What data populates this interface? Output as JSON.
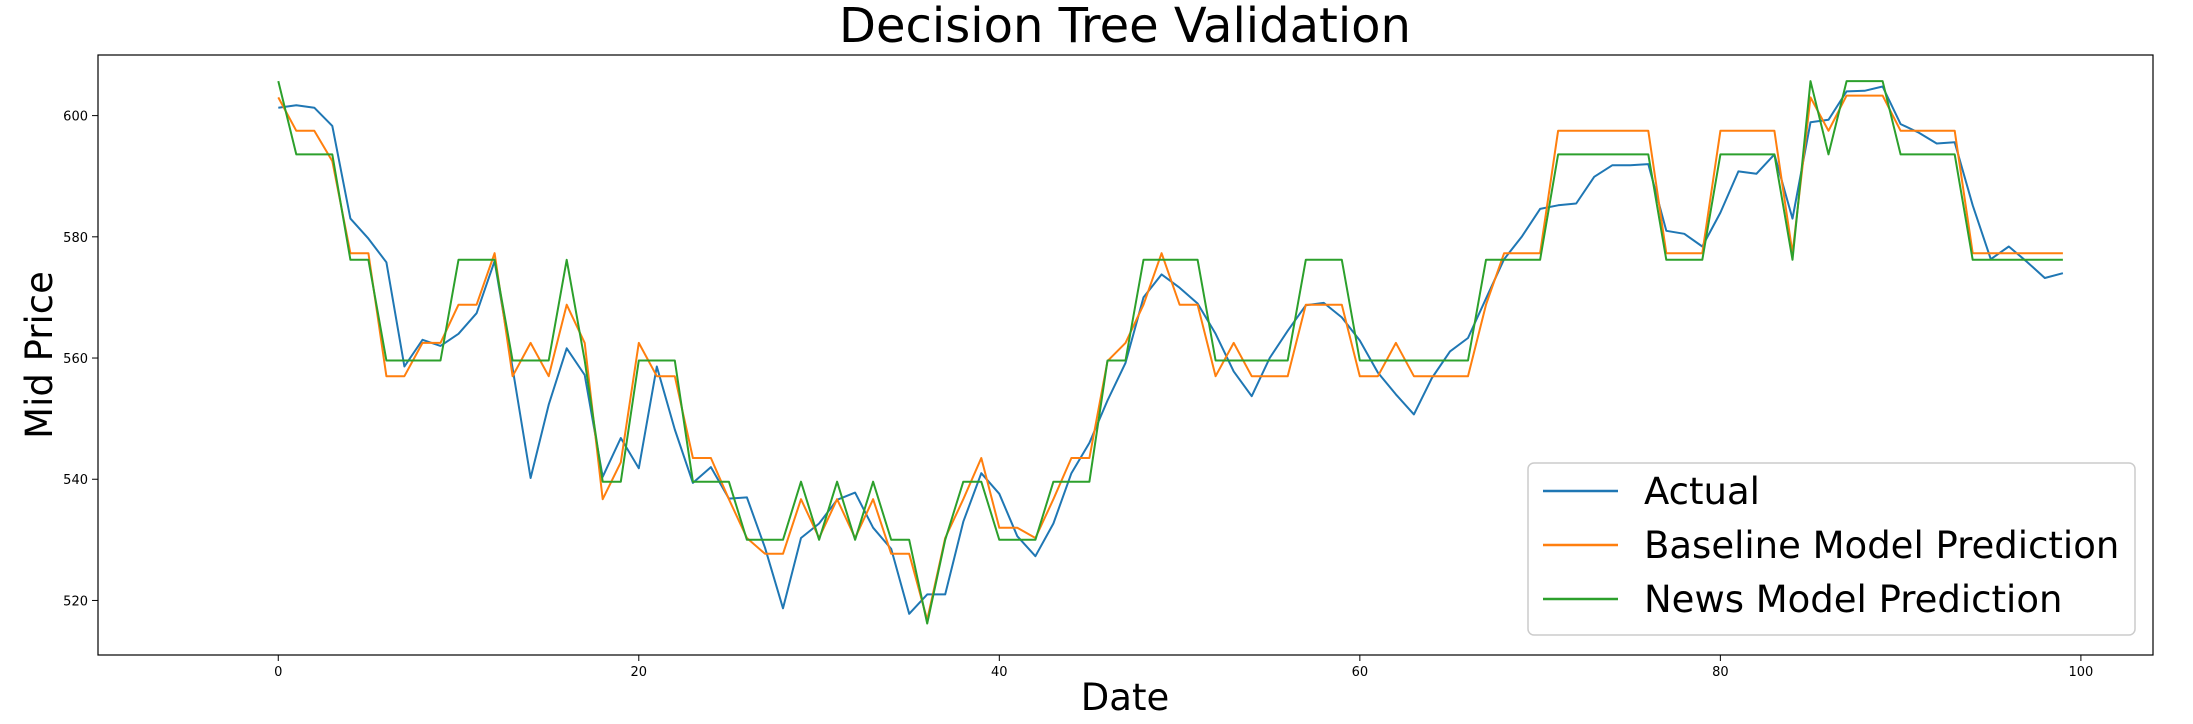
{
  "chart_data": {
    "type": "line",
    "title": "Decision Tree Validation",
    "xlabel": "Date",
    "ylabel": "Mid Price",
    "xlim": [
      -10,
      104
    ],
    "ylim": [
      511,
      610
    ],
    "xticks": [
      0,
      20,
      40,
      60,
      80,
      100
    ],
    "yticks": [
      520,
      540,
      560,
      580,
      600
    ],
    "grid": false,
    "legend_position": "lower right",
    "x": [
      0,
      1,
      2,
      3,
      4,
      5,
      6,
      7,
      8,
      9,
      10,
      11,
      12,
      13,
      14,
      15,
      16,
      17,
      18,
      19,
      20,
      21,
      22,
      23,
      24,
      25,
      26,
      27,
      28,
      29,
      30,
      31,
      32,
      33,
      34,
      35,
      36,
      37,
      38,
      39,
      40,
      41,
      42,
      43,
      44,
      45,
      46,
      47,
      48,
      49,
      50,
      51,
      52,
      53,
      54,
      55,
      56,
      57,
      58,
      59,
      60,
      61,
      62,
      63,
      64,
      65,
      66,
      67,
      68,
      69,
      70,
      71,
      72,
      73,
      74,
      75,
      76,
      77,
      78,
      79,
      80,
      81,
      82,
      83,
      84,
      85,
      86,
      87,
      88,
      89,
      90,
      91,
      92,
      93,
      94,
      95,
      96,
      97,
      98,
      99
    ],
    "series": [
      {
        "name": "Actual",
        "color": "#1f77b4",
        "values": [
          601.3,
          601.7,
          601.3,
          598.3,
          583.0,
          579.7,
          575.8,
          558.6,
          563.0,
          562.0,
          564.0,
          567.4,
          576.0,
          558.3,
          540.2,
          552.3,
          561.6,
          557.2,
          540.4,
          546.8,
          541.8,
          558.6,
          548.2,
          539.4,
          542.0,
          536.8,
          537.0,
          528.7,
          518.7,
          530.3,
          532.7,
          536.6,
          537.8,
          532.0,
          528.5,
          517.8,
          521.0,
          521.0,
          533.0,
          541.0,
          537.6,
          530.6,
          527.3,
          532.7,
          541.0,
          546.0,
          553.0,
          559.2,
          570.0,
          573.8,
          571.6,
          569.0,
          564.0,
          557.8,
          553.7,
          560.0,
          564.5,
          568.7,
          569.1,
          566.7,
          562.9,
          557.6,
          554.0,
          550.7,
          556.7,
          561.1,
          563.3,
          569.8,
          576.3,
          580.1,
          584.6,
          585.2,
          585.5,
          589.9,
          591.8,
          591.8,
          592.0,
          581.0,
          580.5,
          578.4,
          584.0,
          590.8,
          590.4,
          593.6,
          583.0,
          598.9,
          599.3,
          604.0,
          604.1,
          604.8,
          598.6,
          597.2,
          595.4,
          595.6,
          585.2,
          576.3,
          578.4,
          575.9,
          573.2,
          574.0
        ]
      },
      {
        "name": "Baseline Model Prediction",
        "color": "#ff7f0e",
        "values": [
          603.0,
          597.5,
          597.5,
          592.5,
          577.3,
          577.3,
          557.0,
          557.0,
          562.5,
          562.5,
          568.8,
          568.8,
          577.3,
          557.0,
          562.5,
          557.0,
          568.8,
          562.5,
          536.7,
          542.8,
          562.5,
          557.0,
          557.0,
          543.5,
          543.5,
          536.7,
          530.3,
          527.7,
          527.7,
          536.7,
          530.3,
          536.7,
          530.3,
          536.7,
          527.7,
          527.7,
          516.8,
          530.3,
          536.7,
          543.5,
          532.0,
          532.0,
          530.3,
          536.7,
          543.5,
          543.5,
          559.5,
          562.5,
          568.8,
          577.3,
          568.8,
          568.8,
          557.0,
          562.5,
          557.0,
          557.0,
          557.0,
          568.8,
          568.8,
          568.8,
          557.0,
          557.0,
          562.5,
          557.0,
          557.0,
          557.0,
          557.0,
          568.8,
          577.3,
          577.3,
          577.3,
          597.5,
          597.5,
          597.5,
          597.5,
          597.5,
          597.5,
          577.3,
          577.3,
          577.3,
          597.5,
          597.5,
          597.5,
          597.5,
          577.3,
          603.0,
          597.5,
          603.3,
          603.3,
          603.3,
          597.5,
          597.5,
          597.5,
          597.5,
          577.3,
          577.3,
          577.3,
          577.3,
          577.3,
          577.3
        ]
      },
      {
        "name": "News Model Prediction",
        "color": "#2ca02c",
        "values": [
          605.7,
          593.6,
          593.6,
          593.6,
          576.2,
          576.2,
          559.6,
          559.6,
          559.6,
          559.6,
          576.2,
          576.2,
          576.2,
          559.6,
          559.6,
          559.6,
          576.2,
          559.6,
          539.6,
          539.6,
          559.6,
          559.6,
          559.6,
          539.6,
          539.6,
          539.6,
          530.0,
          530.0,
          530.0,
          539.6,
          530.0,
          539.6,
          530.0,
          539.6,
          530.0,
          530.0,
          516.2,
          530.0,
          539.6,
          539.6,
          530.0,
          530.0,
          530.0,
          539.6,
          539.6,
          539.6,
          559.6,
          559.6,
          576.2,
          576.2,
          576.2,
          576.2,
          559.6,
          559.6,
          559.6,
          559.6,
          559.6,
          576.2,
          576.2,
          576.2,
          559.6,
          559.6,
          559.6,
          559.6,
          559.6,
          559.6,
          559.6,
          576.2,
          576.2,
          576.2,
          576.2,
          593.6,
          593.6,
          593.6,
          593.6,
          593.6,
          593.6,
          576.2,
          576.2,
          576.2,
          593.6,
          593.6,
          593.6,
          593.6,
          576.2,
          605.7,
          593.6,
          605.7,
          605.7,
          605.7,
          593.6,
          593.6,
          593.6,
          593.6,
          576.2,
          576.2,
          576.2,
          576.2,
          576.2,
          576.2
        ]
      }
    ]
  }
}
